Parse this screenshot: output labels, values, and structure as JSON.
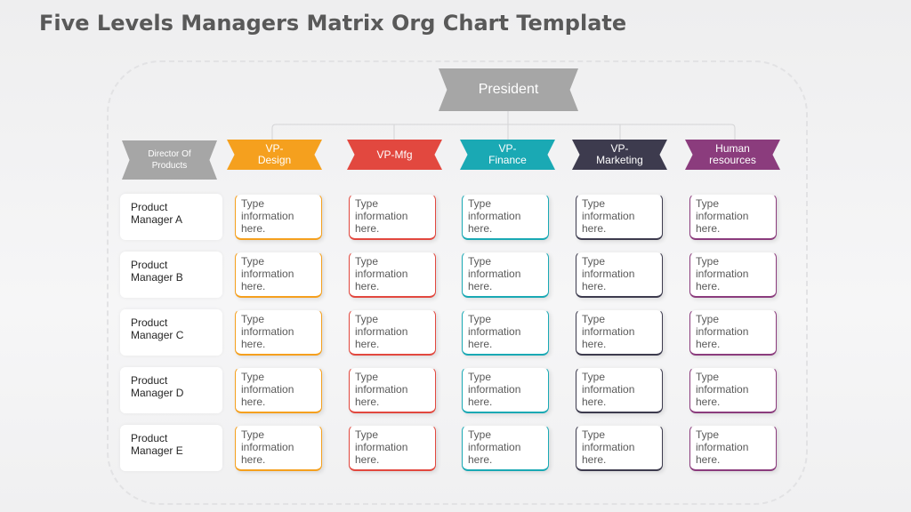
{
  "title": "Five Levels Managers Matrix Org Chart Template",
  "president": "President",
  "director": "Director Of Products",
  "columns": [
    {
      "label": "VP-\nDesign",
      "color": "#f5a01e"
    },
    {
      "label": "VP-Mfg",
      "color": "#e2483f"
    },
    {
      "label": "VP-\nFinance",
      "color": "#1aa9b4"
    },
    {
      "label": "VP-\nMarketing",
      "color": "#3d3b4e"
    },
    {
      "label": "Human\nresources",
      "color": "#8b3c7d"
    }
  ],
  "rows": [
    "Product Manager A",
    "Product Manager B",
    "Product Manager C",
    "Product Manager D",
    "Product Manager E"
  ],
  "cell_text": "Type information here."
}
